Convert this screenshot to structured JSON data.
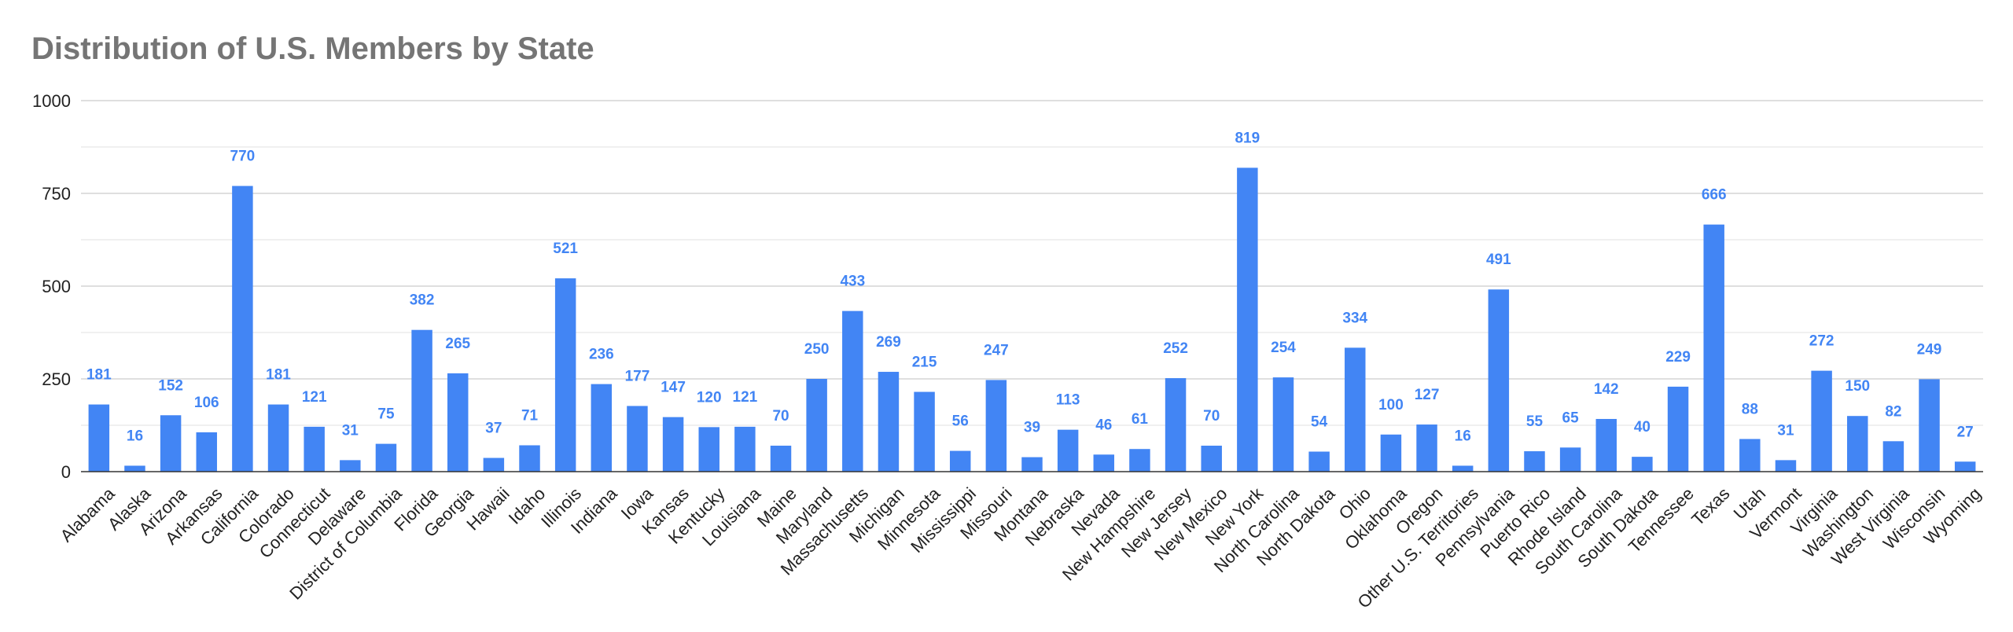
{
  "chart_data": {
    "type": "bar",
    "title": "Distribution of U.S. Members by State",
    "xlabel": "",
    "ylabel": "",
    "ylim": [
      0,
      1000
    ],
    "yticks": [
      0,
      250,
      500,
      750,
      1000
    ],
    "grid": true,
    "bar_color": "#4285f4",
    "label_color": "#4285f4",
    "categories": [
      "Alabama",
      "Alaska",
      "Arizona",
      "Arkansas",
      "California",
      "Colorado",
      "Connecticut",
      "Delaware",
      "District of Columbia",
      "Florida",
      "Georgia",
      "Hawaii",
      "Idaho",
      "Illinois",
      "Indiana",
      "Iowa",
      "Kansas",
      "Kentucky",
      "Louisiana",
      "Maine",
      "Maryland",
      "Massachusetts",
      "Michigan",
      "Minnesota",
      "Mississippi",
      "Missouri",
      "Montana",
      "Nebraska",
      "Nevada",
      "New Hampshire",
      "New Jersey",
      "New Mexico",
      "New York",
      "North Carolina",
      "North Dakota",
      "Ohio",
      "Oklahoma",
      "Oregon",
      "Other U.S. Territories",
      "Pennsylvania",
      "Puerto Rico",
      "Rhode Island",
      "South Carolina",
      "South Dakota",
      "Tennessee",
      "Texas",
      "Utah",
      "Vermont",
      "Virginia",
      "Washington",
      "West Virginia",
      "Wisconsin",
      "Wyoming"
    ],
    "values": [
      181,
      16,
      152,
      106,
      770,
      181,
      121,
      31,
      75,
      382,
      265,
      37,
      71,
      521,
      236,
      177,
      147,
      120,
      121,
      70,
      250,
      433,
      269,
      215,
      56,
      247,
      39,
      113,
      46,
      61,
      252,
      70,
      819,
      254,
      54,
      334,
      100,
      127,
      16,
      491,
      55,
      65,
      142,
      40,
      229,
      666,
      88,
      31,
      272,
      150,
      82,
      249,
      27
    ]
  }
}
